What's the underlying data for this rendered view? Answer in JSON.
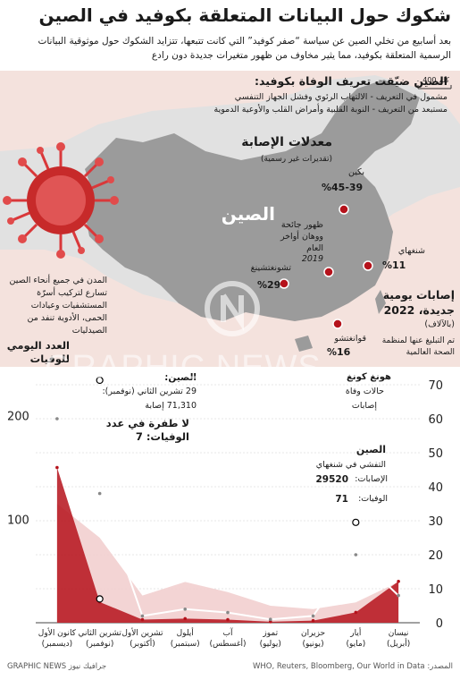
{
  "title": "شكوك حول البيانات المتعلقة بكوفيد في الصين",
  "intro": "بعد أسابيع من تخلي الصين عن سياسة “صفر كوفيد” التي كانت تتبعها، تتزايد الشكوك حول موثوقية البيانات الرسمية المتعلقة بكوفيد، مما يثير مخاوف من ظهور متغيرات جديدة دون رادع",
  "map": {
    "scale_label": "400 كلم",
    "death_def_title": "الصين ضيّقت تعريف الوفاة بكوفيد:",
    "death_def_line1": "مشمول في التعريف - الالتهاب الرئوي وفشل الجهاز التنفسي",
    "death_def_line2": "مستبعد من التعريف - النوبة القلبية وأمراض القلب والأوعية الدموية",
    "infection_title": "معدلات الإصابة",
    "infection_sub": "(تقديرات غير رسمية)",
    "country_label": "الصين",
    "origin_label": "ظهور جائحة ووهان أواخر العام",
    "origin_year": "2019",
    "cities": [
      {
        "name": "بكين",
        "rate": "%45-39"
      },
      {
        "name": "شنغهاي",
        "rate": "%11"
      },
      {
        "name": "تشونغتشينغ",
        "rate": "%29"
      },
      {
        "name": "قوانغتشو",
        "rate": "%16"
      }
    ],
    "hospitals_note": "المدن في جميع أنحاء الصين تسارع لتركيب أسرّة المستشفيات وعيادات الحمى، الأدوية تنفد من الصيدليات"
  },
  "chart": {
    "left_axis_title": "العدد اليومي للوفيات",
    "right_axis_title": "إصابات يومية جديدة، 2022",
    "right_axis_unit": "(بالآلاف)",
    "right_axis_note": "تم التبليغ عنها لمنظمة الصحة العالمية",
    "hk_title": "هونغ كونغ",
    "hk_deaths": "حالات وفاة",
    "hk_cases": "إصابات",
    "china_box_title": "الصين:",
    "china_box_date": "29 تشرين الثاني (نوفمبر):",
    "china_box_cases": "71,310 إصابة",
    "no_spike": "لا طفرة في عدد الوفيات: 7",
    "china_title": "الصين",
    "shanghai_outbreak": "التفشي في شنغهاي",
    "shanghai_cases_label": "الإصابات:",
    "shanghai_cases_value": "29520",
    "shanghai_deaths_label": "الوفيات:",
    "shanghai_deaths_value": "71"
  },
  "chart_data": {
    "type": "area",
    "x": [
      "نيسان (أبريل)",
      "أيار (مايو)",
      "حزيران (يونيو)",
      "تموز (يوليو)",
      "آب (أغسطس)",
      "أيلول (سبتمبر)",
      "تشرين الأول (أكتوبر)",
      "تشرين الثاني (نوفمبر)",
      "كانون الأول (ديسمبر)"
    ],
    "left_axis": {
      "title": "العدد اليومي للوفيات",
      "ticks": [
        100,
        200
      ],
      "ylim": [
        0,
        230
      ]
    },
    "right_axis": {
      "title": "إصابات يومية جديدة، 2022",
      "unit": "(بالآلاف)",
      "ticks": [
        0,
        10,
        20,
        30,
        40,
        50,
        60,
        70
      ],
      "ylim": [
        0,
        70
      ]
    },
    "series": [
      {
        "name": "حالات وفاة",
        "axis": "left",
        "color": "#b5121b",
        "values": [
          40,
          10,
          2,
          1,
          3,
          4,
          3,
          20,
          150
        ]
      },
      {
        "name": "إصابات",
        "axis": "right",
        "color": "#ffffff",
        "values": [
          8,
          20,
          2,
          1,
          3,
          4,
          2,
          38,
          60
        ]
      }
    ],
    "background_series": {
      "color": "#f2cfcf",
      "values": [
        12,
        6,
        4,
        5,
        9,
        12,
        8,
        25,
        35
      ]
    },
    "annotations": [
      {
        "label": "29 تشرين الثاني (نوفمبر): 71,310 إصابة",
        "x": "تشرين الثاني (نوفمبر)",
        "y": 71.31
      },
      {
        "label": "التفشي في شنغهاي: الإصابات 29520، الوفيات 71",
        "x": "أيار (مايو)",
        "y": 29.52
      },
      {
        "label": "لا طفرة في عدد الوفيات: 7",
        "x": "تشرين الثاني (نوفمبر)",
        "y": 7
      }
    ]
  },
  "footer": {
    "source": "المصدر: WHO, Reuters, Bloomberg, Our World in Data",
    "brand": "GRAPHIC NEWS جرافيك نيوز"
  },
  "watermark": "GRAPHIC NEWS",
  "colors": {
    "panel": "#f4e2dd",
    "china": "#9b9b9b",
    "neighbors": "#e1e1e1",
    "death_red": "#b5121b",
    "pink": "#f2cfcf"
  }
}
